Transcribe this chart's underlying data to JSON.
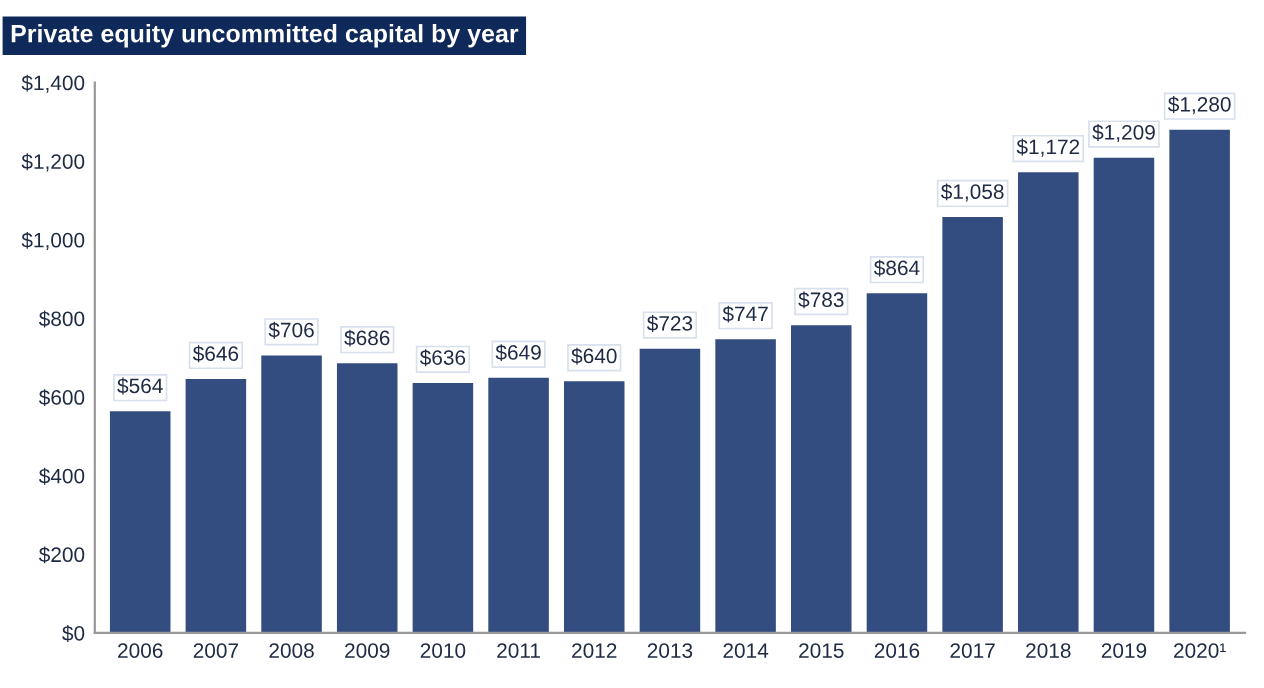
{
  "chart_data": {
    "type": "bar",
    "title": "Private equity uncommitted capital by year",
    "categories": [
      "2006",
      "2007",
      "2008",
      "2009",
      "2010",
      "2011",
      "2012",
      "2013",
      "2014",
      "2015",
      "2016",
      "2017",
      "2018",
      "2019",
      "2020¹"
    ],
    "values": [
      564,
      646,
      706,
      686,
      636,
      649,
      640,
      723,
      747,
      783,
      864,
      1058,
      1172,
      1209,
      1280
    ],
    "value_labels": [
      "$564",
      "$646",
      "$706",
      "$686",
      "$636",
      "$649",
      "$640",
      "$723",
      "$747",
      "$783",
      "$864",
      "$1,058",
      "$1,172",
      "$1,209",
      "$1,280"
    ],
    "color": "#344d80",
    "ylim": [
      0,
      1400
    ],
    "yticks": [
      {
        "value": 0,
        "label": "$0"
      },
      {
        "value": 200,
        "label": "$200"
      },
      {
        "value": 400,
        "label": "$400"
      },
      {
        "value": 600,
        "label": "$600"
      },
      {
        "value": 800,
        "label": "$800"
      },
      {
        "value": 1000,
        "label": "$1,000"
      },
      {
        "value": 1200,
        "label": "$1,200"
      },
      {
        "value": 1400,
        "label": "$1,400"
      }
    ],
    "grid": false
  }
}
